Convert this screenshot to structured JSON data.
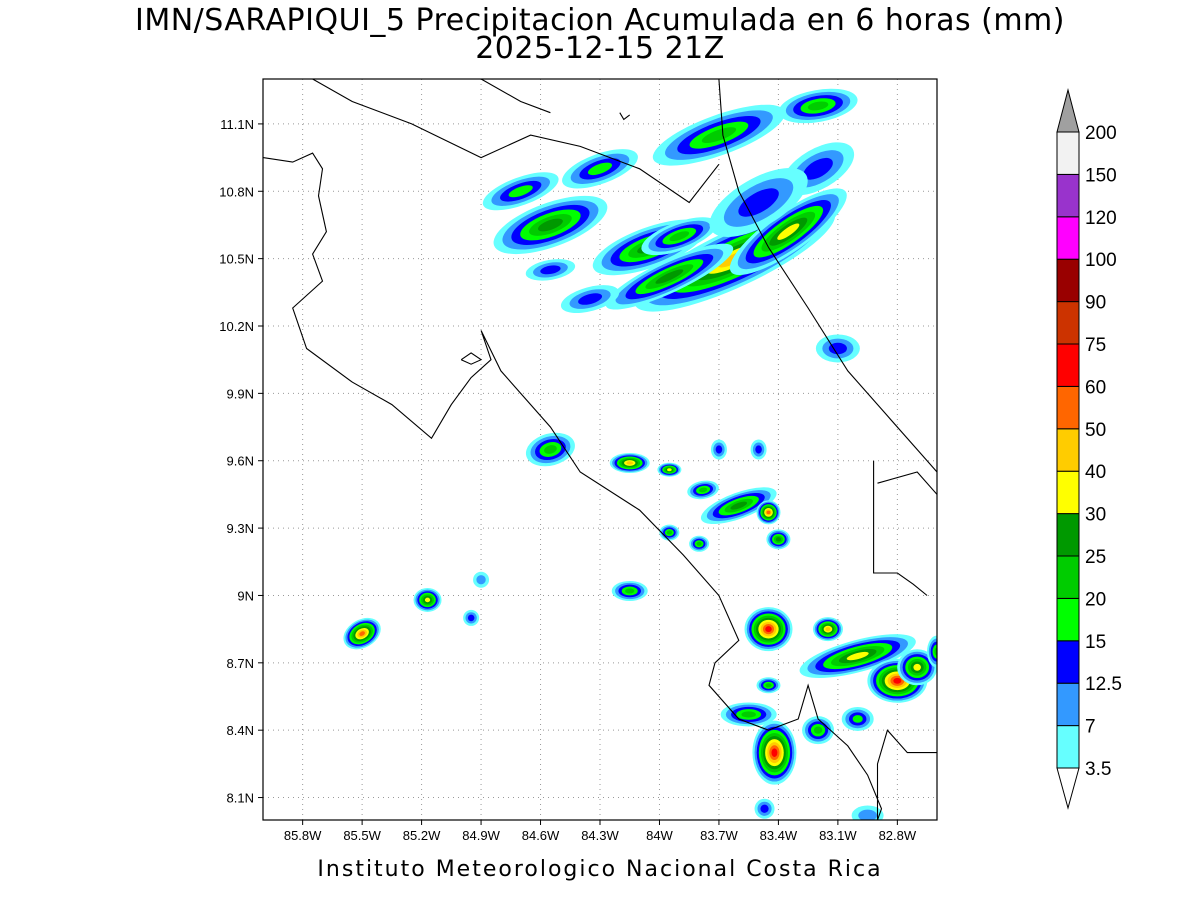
{
  "title": {
    "line1": "IMN/SARAPIQUI_5 Precipitacion Acumulada en 6 horas (mm)",
    "line2": "2025-12-15 21Z"
  },
  "footer": "Instituto Meteorologico Nacional Costa Rica",
  "map": {
    "lon_range": [
      -86.0,
      -82.6
    ],
    "lat_range": [
      8.0,
      11.3
    ],
    "lon_ticks": [
      "85.8W",
      "85.5W",
      "85.2W",
      "84.9W",
      "84.6W",
      "84.3W",
      "84W",
      "83.7W",
      "83.4W",
      "83.1W",
      "82.8W"
    ],
    "lat_ticks": [
      "8.1N",
      "8.4N",
      "8.7N",
      "9N",
      "9.3N",
      "9.6N",
      "9.9N",
      "10.2N",
      "10.5N",
      "10.8N",
      "11.1N"
    ],
    "gridlines": "dotted"
  },
  "colorbar": {
    "levels": [
      "3.5",
      "7",
      "12.5",
      "15",
      "20",
      "25",
      "30",
      "40",
      "50",
      "60",
      "75",
      "90",
      "100",
      "120",
      "150",
      "200"
    ],
    "colors": [
      "#66ffff",
      "#3399ff",
      "#0000ff",
      "#00ff00",
      "#00cc00",
      "#009900",
      "#ffff00",
      "#ffcc00",
      "#ff6600",
      "#ff0000",
      "#cc3300",
      "#990000",
      "#ff00ff",
      "#9933cc",
      "#f2f2f2",
      "#a0a0a0"
    ]
  },
  "colors": {
    "outline": "#000000",
    "map_background": "#ffffff"
  }
}
